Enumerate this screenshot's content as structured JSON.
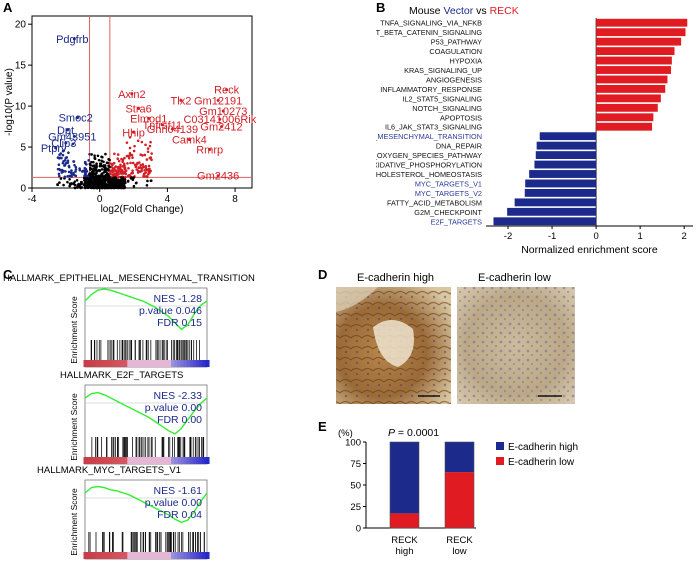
{
  "panel_labels": {
    "a": "A",
    "b": "B",
    "c": "C",
    "d": "D",
    "e": "E"
  },
  "panel_a": {
    "chart_data": {
      "type": "scatter",
      "title": "",
      "xlabel": "log2(Fold Change)",
      "ylabel": "-log10(P value)",
      "xlim": [
        -4,
        9
      ],
      "ylim": [
        0,
        21
      ],
      "xticks": [
        "-4",
        "0",
        "4",
        "8"
      ],
      "yticks": [
        "0",
        "5",
        "10",
        "15",
        "20"
      ],
      "down_color": "#1a2a8a",
      "up_color": "#d21f26",
      "labels_down": [
        {
          "text": "Pdgfrb",
          "x": -1.5,
          "y": 18.2
        },
        {
          "text": "Smoc2",
          "x": -1.3,
          "y": 8.6
        },
        {
          "text": "Dpt",
          "x": -1.9,
          "y": 7.1
        },
        {
          "text": "Gm43951",
          "x": -1.5,
          "y": 6.3
        },
        {
          "text": "Clip3",
          "x": -2.0,
          "y": 5.5
        },
        {
          "text": "Ptprv",
          "x": -2.6,
          "y": 4.9
        }
      ],
      "labels_up": [
        {
          "text": "Reck",
          "x": 7.5,
          "y": 12.0
        },
        {
          "text": "Axin2",
          "x": 1.9,
          "y": 11.5
        },
        {
          "text": "Tlx2",
          "x": 4.8,
          "y": 10.7
        },
        {
          "text": "Gm12191",
          "x": 7.0,
          "y": 10.7
        },
        {
          "text": "Stra6",
          "x": 2.3,
          "y": 9.7
        },
        {
          "text": "Gm10273",
          "x": 7.3,
          "y": 9.4
        },
        {
          "text": "Elmod1",
          "x": 2.9,
          "y": 8.5
        },
        {
          "text": "C03141006Rik",
          "x": 7.1,
          "y": 8.4
        },
        {
          "text": "Tnfrsf11",
          "x": 3.7,
          "y": 7.7
        },
        {
          "text": "Gm2412",
          "x": 7.2,
          "y": 7.5
        },
        {
          "text": "Ghrl04139",
          "x": 4.3,
          "y": 7.2
        },
        {
          "text": "Hhip",
          "x": 2.0,
          "y": 6.8
        },
        {
          "text": "Camk4",
          "x": 5.3,
          "y": 5.9
        },
        {
          "text": "Rmrp",
          "x": 6.5,
          "y": 4.7
        },
        {
          "text": "Gm2436",
          "x": 7.0,
          "y": 1.5
        }
      ]
    }
  },
  "panel_b": {
    "title_prefix": "Mouse",
    "title_vector": "Vector",
    "title_vs": "vs",
    "title_reck": "RECK",
    "chart_data": {
      "type": "bar",
      "orientation": "horizontal",
      "xlabel": "Normalized enrichment score",
      "xlim": [
        -2.5,
        2.2
      ],
      "xticks": [
        "-2",
        "-1",
        "0",
        "1",
        "2"
      ],
      "pos_color": "#e11b22",
      "neg_color": "#1c2a8c",
      "highlight_label_color": "#2a3a9a",
      "categories": [
        "TNFA_SIGNALING_VIA_NFKB",
        "WNT_BETA_CATENIN_SIGNALING",
        "P53_PATHWAY",
        "COAGULATION",
        "HYPOXIA",
        "KRAS_SIGNALING_UP",
        "ANGIOGENESIS",
        "INFLAMMATORY_RESPONSE",
        "IL2_STAT5_SIGNALING",
        "NOTCH_SIGNALING",
        "APOPTOSIS",
        "IL6_JAK_STAT3_SIGNALING",
        "EPITHELIAL_MESENCHYMAL_TRANSITION",
        "DNA_REPAIR",
        "REACTIVE_OXYGEN_SPECIES_PATHWAY",
        "OXIDATIVE_PHOSPHORYLATION",
        "CHOLESTEROL_HOMEOSTASIS",
        "MYC_TARGETS_V1",
        "MYC_TARGETS_V2",
        "FATTY_ACID_METABOLISM",
        "G2M_CHECKPOINT",
        "E2F_TARGETS"
      ],
      "values": [
        2.07,
        2.03,
        1.93,
        1.78,
        1.72,
        1.7,
        1.62,
        1.57,
        1.47,
        1.4,
        1.3,
        1.27,
        -1.28,
        -1.35,
        -1.37,
        -1.4,
        -1.52,
        -1.61,
        -1.62,
        -1.85,
        -2.02,
        -2.33
      ],
      "highlighted": [
        "EPITHELIAL_MESENCHYMAL_TRANSITION",
        "MYC_TARGETS_V1",
        "MYC_TARGETS_V2",
        "E2F_TARGETS"
      ]
    }
  },
  "panel_c": {
    "ylabel": "Enrichment Score",
    "curve_color": "#33ee33",
    "plots": [
      {
        "title": "HALLMARK_EPITHELIAL_MESENCHYMAL_TRANSITION",
        "nes": "NES -1.28",
        "pval": "p.value 0.046",
        "fdr": "FDR 0.15",
        "curve": [
          0,
          0.06,
          0.1,
          0.11,
          0.1,
          0.08,
          0.06,
          0.04,
          0.02,
          0.0,
          -0.03,
          -0.06,
          -0.1,
          -0.14,
          -0.2,
          -0.26,
          -0.22,
          -0.12,
          -0.04,
          0
        ]
      },
      {
        "title": "HALLMARK_E2F_TARGETS",
        "nes": "NES -2.33",
        "pval": "p.value 0.00",
        "fdr": "FDR 0.00",
        "curve": [
          0,
          0.04,
          0.05,
          0.03,
          0.0,
          -0.03,
          -0.06,
          -0.09,
          -0.12,
          -0.15,
          -0.18,
          -0.22,
          -0.26,
          -0.3,
          -0.33,
          -0.28,
          -0.2,
          -0.12,
          -0.05,
          0
        ]
      },
      {
        "title": "HALLMARK_MYC_TARGETS_V1",
        "nes": "NES -1.61",
        "pval": "p.value 0.00",
        "fdr": "FDR 0.04",
        "curve": [
          0,
          0.05,
          0.06,
          0.05,
          0.03,
          0.02,
          0.0,
          -0.02,
          -0.05,
          -0.08,
          -0.11,
          -0.14,
          -0.17,
          -0.2,
          -0.24,
          -0.27,
          -0.25,
          -0.17,
          -0.08,
          0
        ]
      }
    ]
  },
  "panel_d": {
    "label_high": "E-cadherin high",
    "label_low": "E-cadherin low"
  },
  "panel_e": {
    "chart_data": {
      "type": "bar",
      "stacked": true,
      "ylabel": "(%)",
      "ylim": [
        0,
        100
      ],
      "yticks": [
        "0",
        "25",
        "50",
        "75",
        "100"
      ],
      "categories": [
        "RECK high",
        "RECK low"
      ],
      "category_lines": [
        [
          "RECK",
          "high"
        ],
        [
          "RECK",
          "low"
        ]
      ],
      "series": [
        {
          "name": "E-cadherin low",
          "values": [
            17,
            65
          ],
          "color": "#e11b22"
        },
        {
          "name": "E-cadherin high",
          "values": [
            83,
            35
          ],
          "color": "#1c2a8c"
        }
      ],
      "annotation_p": "P",
      "annotation_value": " = 0.0001"
    }
  }
}
